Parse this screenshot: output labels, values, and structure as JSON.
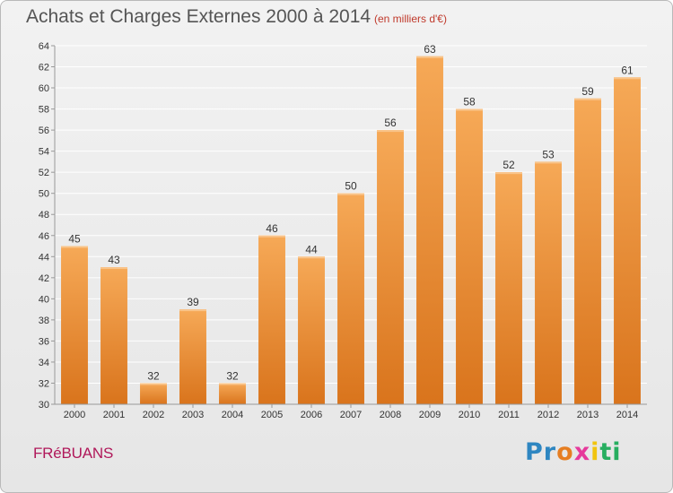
{
  "header": {
    "title": "Achats et Charges Externes 2000 à 2014",
    "subtitle": "(en milliers d'€)"
  },
  "footer": {
    "commune": "FRéBUANS",
    "logo": {
      "letters": [
        "P",
        "r",
        "o",
        "x",
        "i",
        "t",
        "i"
      ],
      "colors": [
        "#2e86c1",
        "#2e86c1",
        "#e67e22",
        "#e6399b",
        "#f1c40f",
        "#27ae60",
        "#27ae60"
      ]
    }
  },
  "chart_data": {
    "type": "bar",
    "title": "Achats et Charges Externes 2000 à 2014",
    "categories": [
      "2000",
      "2001",
      "2002",
      "2003",
      "2004",
      "2005",
      "2006",
      "2007",
      "2008",
      "2009",
      "2010",
      "2011",
      "2012",
      "2013",
      "2014"
    ],
    "values": [
      45,
      43,
      32,
      39,
      32,
      46,
      44,
      50,
      56,
      63,
      58,
      52,
      53,
      59,
      61
    ],
    "data_labels": [
      "45",
      "43",
      "32",
      "39",
      "32",
      "46",
      "44",
      "50",
      "56",
      "63",
      "58",
      "52",
      "53",
      "59",
      "61"
    ],
    "ylim": [
      30,
      64
    ],
    "yticks": [
      "30",
      "32",
      "34",
      "36",
      "38",
      "40",
      "42",
      "44",
      "46",
      "48",
      "50",
      "52",
      "54",
      "56",
      "58",
      "60",
      "62",
      "64"
    ],
    "grid": true,
    "colors": {
      "bar_top": "#f6a957",
      "bar_bottom": "#d9741c",
      "grid": "#ffffff",
      "axis_text": "#333333"
    }
  }
}
